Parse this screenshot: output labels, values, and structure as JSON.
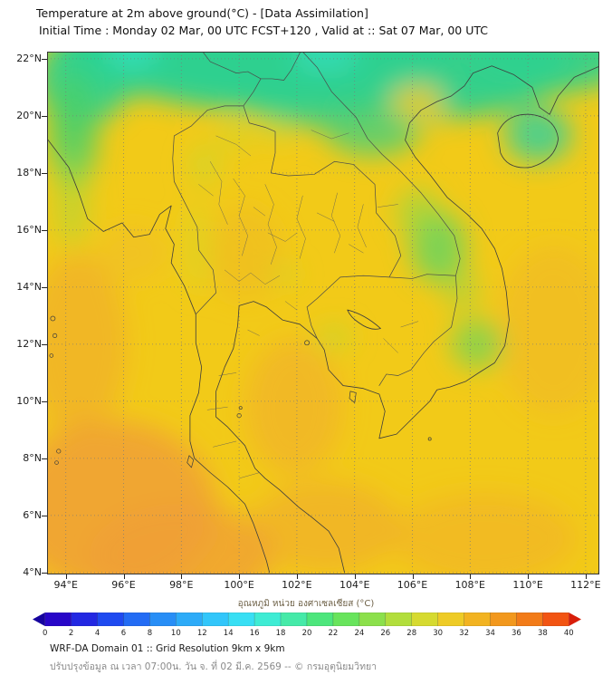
{
  "header": {
    "title": "Temperature at 2m above ground(°C) - [Data Assimilation]",
    "subtitle": "Initial Time : Monday 02 Mar, 00 UTC FCST+120 , Valid at :: Sat 07 Mar, 00 UTC"
  },
  "map": {
    "lat_ticks": [
      "22°N",
      "20°N",
      "18°N",
      "16°N",
      "14°N",
      "12°N",
      "10°N",
      "8°N",
      "6°N",
      "4°N"
    ],
    "lon_ticks": [
      "94°E",
      "96°E",
      "98°E",
      "100°E",
      "102°E",
      "104°E",
      "106°E",
      "108°E",
      "110°E",
      "112°E"
    ],
    "field_colors": {
      "warm_base": "#f2ca18",
      "hot": "#f0a036",
      "cool_green": "#2dd08f"
    }
  },
  "colorbar": {
    "label": "อุณหภูมิ หน่วย องศาเซลเซียส (°C)",
    "tick_values": [
      "0",
      "2",
      "4",
      "6",
      "8",
      "10",
      "12",
      "14",
      "16",
      "18",
      "20",
      "22",
      "24",
      "26",
      "28",
      "30",
      "32",
      "34",
      "36",
      "38",
      "40"
    ],
    "left_arrow_color": "#16039e",
    "right_arrow_color": "#d81e0a",
    "segment_colors": [
      "#2806c8",
      "#2328e2",
      "#1f4af0",
      "#236cf4",
      "#288ef6",
      "#2dabf8",
      "#32c6fa",
      "#38dff4",
      "#3eecd4",
      "#45eaa8",
      "#4de67c",
      "#68e45c",
      "#8ce04b",
      "#b2de3c",
      "#d6da30",
      "#eecb26",
      "#f2b321",
      "#f2981d",
      "#f27b18",
      "#f25412"
    ]
  },
  "footer": {
    "line1": "WRF-DA Domain 01 :: Grid Resolution 9km x 9km",
    "line2": "ปรับปรุงข้อมูล ณ เวลา 07:00น. วัน จ. ที่ 02 มี.ค. 2569 -- © กรมอุตุนิยมวิทยา"
  }
}
